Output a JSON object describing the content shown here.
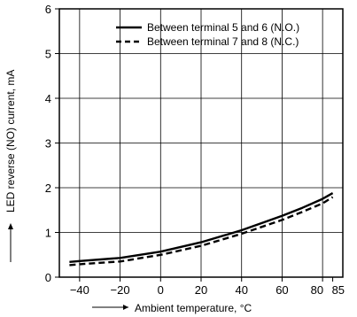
{
  "chart_data": {
    "type": "line",
    "xlabel": "Ambient temperature, °C",
    "ylabel": "LED reverse (NO) current, mA",
    "xlim": [
      -50,
      90
    ],
    "ylim": [
      0,
      6
    ],
    "x_ticks": [
      -40,
      -20,
      0,
      20,
      40,
      60,
      80,
      85
    ],
    "x_tick_labels": [
      "−40",
      "−20",
      "0",
      "20",
      "40",
      "60",
      "80",
      "85"
    ],
    "y_ticks": [
      0,
      1,
      2,
      3,
      4,
      5,
      6
    ],
    "grid": true,
    "legend_position": "top-right",
    "series": [
      {
        "name": "Between terminal 5 and 6 (N.O.)",
        "style": "solid",
        "x": [
          -45,
          -40,
          -20,
          0,
          20,
          40,
          60,
          70,
          80,
          85
        ],
        "y": [
          0.34,
          0.36,
          0.43,
          0.57,
          0.78,
          1.05,
          1.37,
          1.55,
          1.75,
          1.88
        ]
      },
      {
        "name": "Between terminal 7 and 8 (N.C.)",
        "style": "dashed",
        "x": [
          -45,
          -40,
          -20,
          0,
          20,
          40,
          60,
          70,
          80,
          85
        ],
        "y": [
          0.27,
          0.29,
          0.35,
          0.5,
          0.7,
          0.97,
          1.28,
          1.46,
          1.65,
          1.79
        ]
      }
    ]
  }
}
